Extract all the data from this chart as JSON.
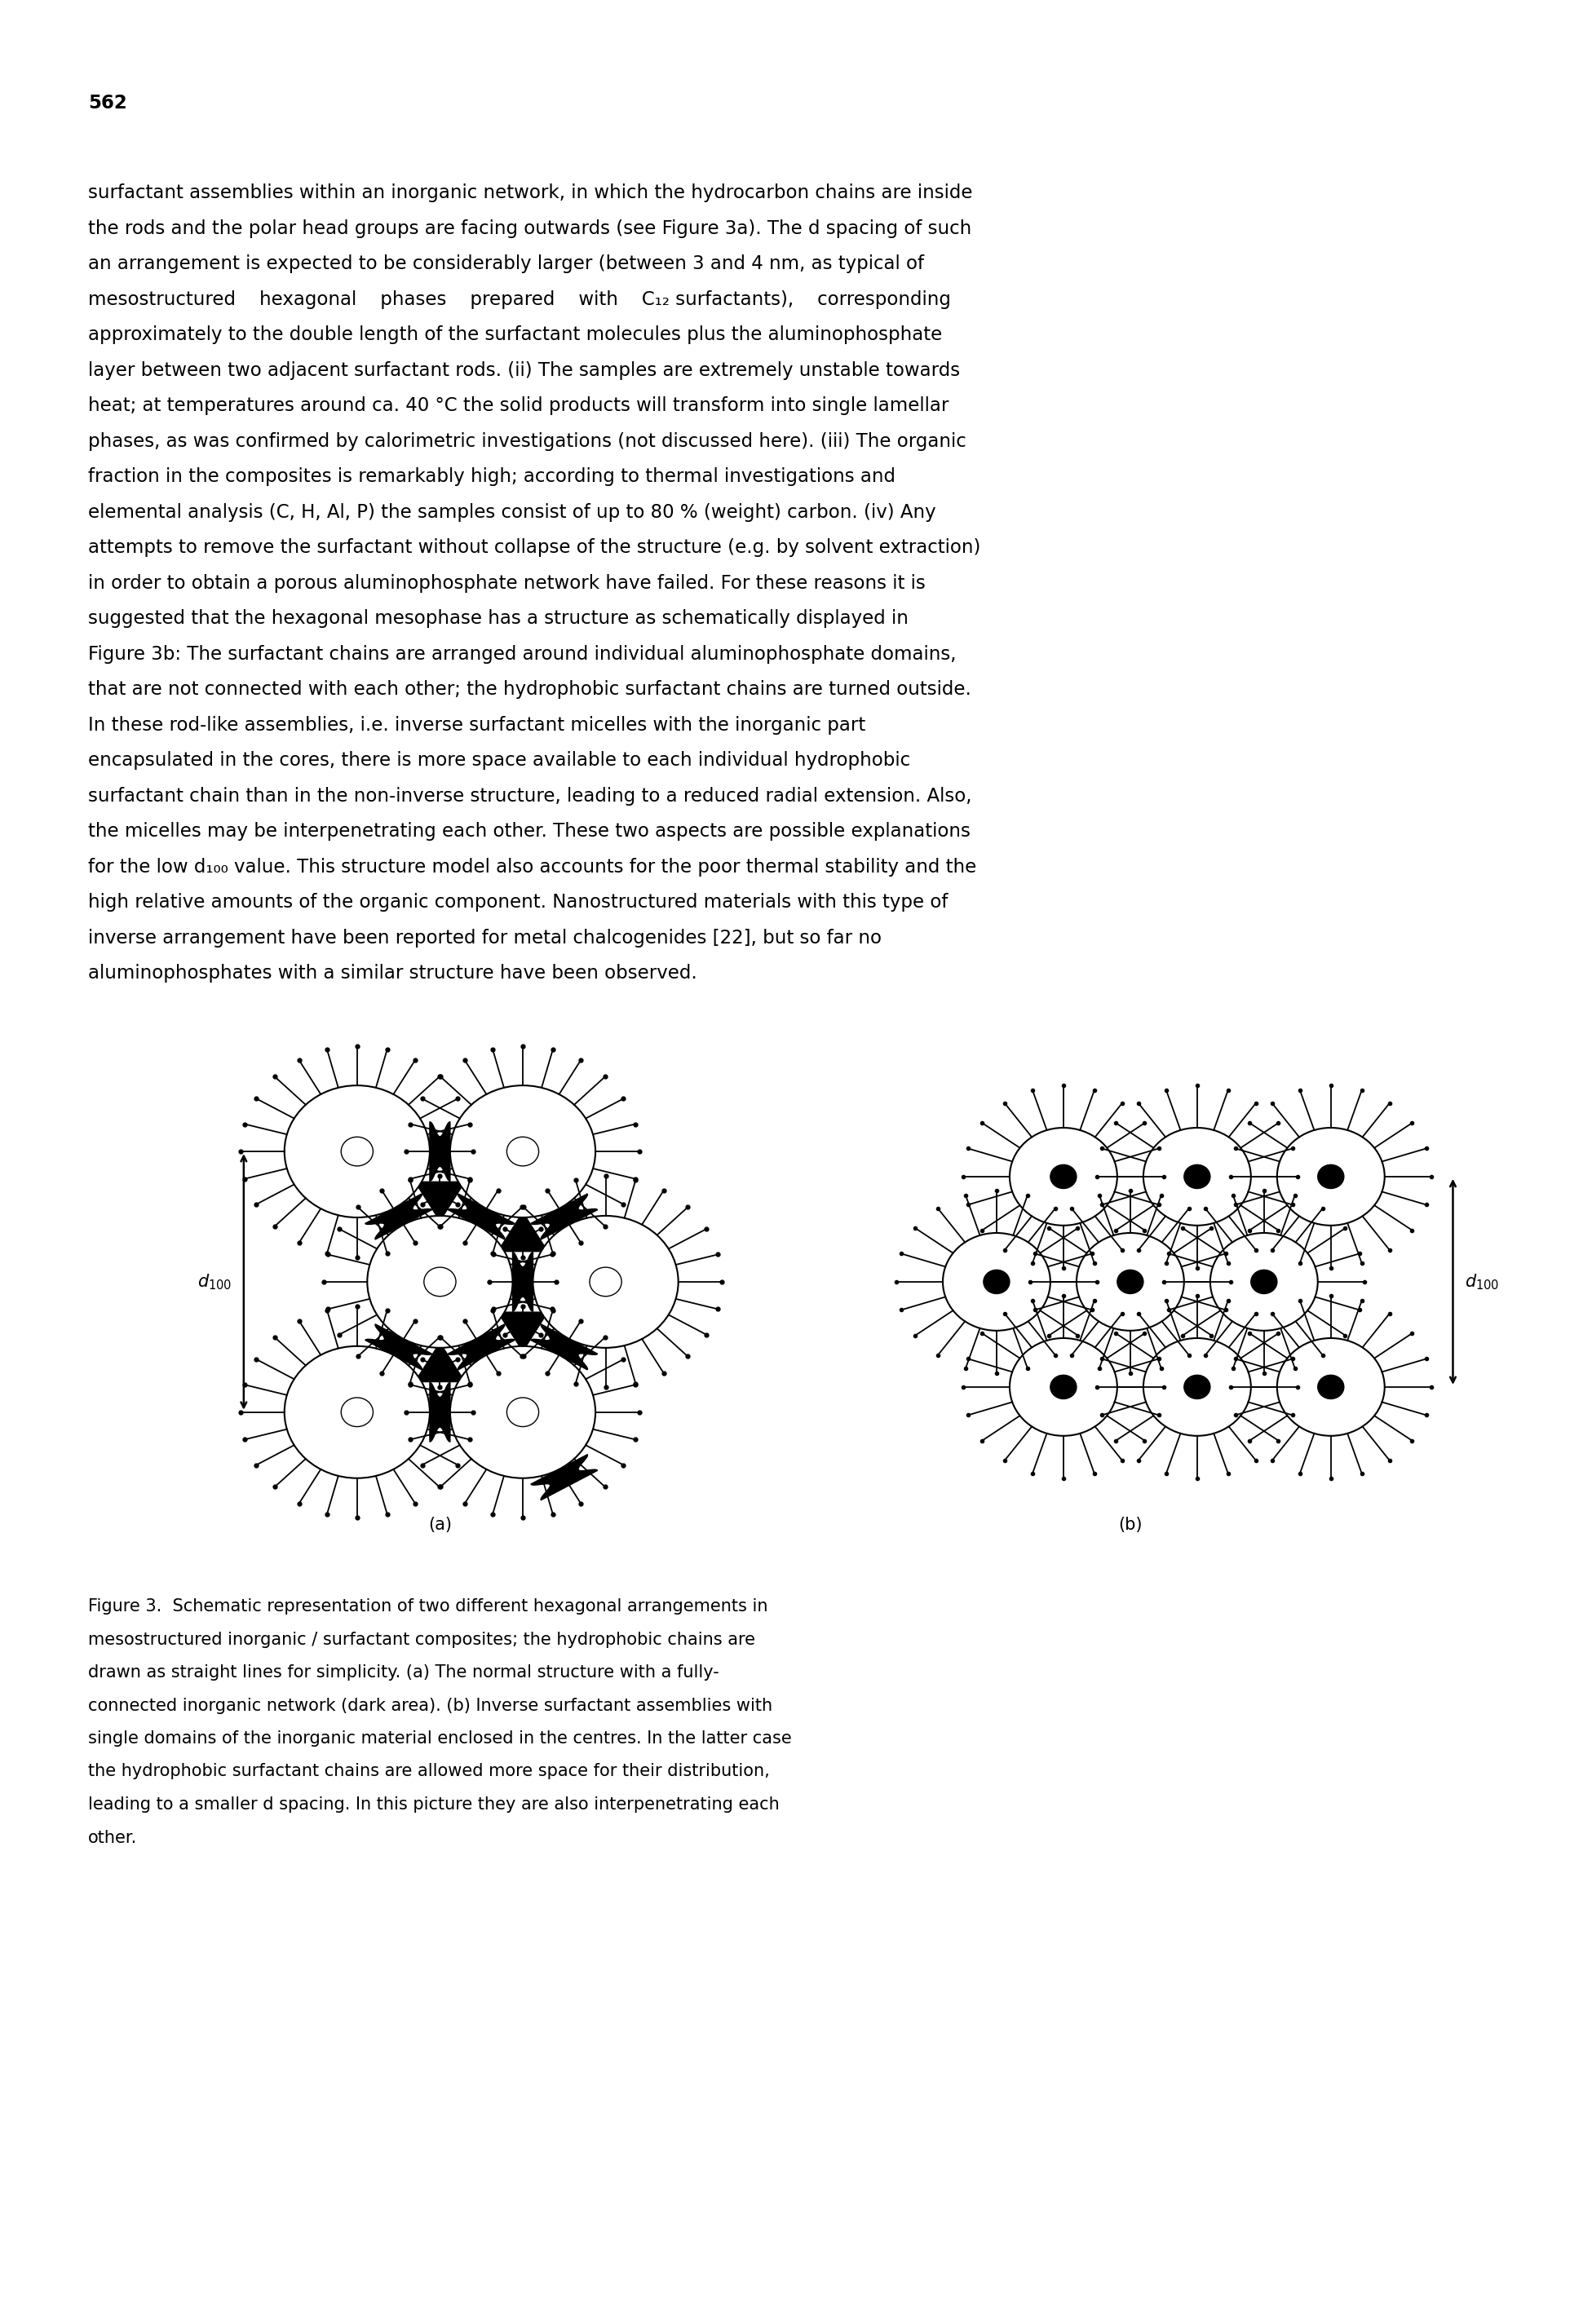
{
  "page_number": "562",
  "body_text_lines": [
    "surfactant assemblies within an inorganic network, in which the hydrocarbon chains are inside",
    "the rods and the polar head groups are facing outwards (see Figure 3a). The d spacing of such",
    "an arrangement is expected to be considerably larger (between 3 and 4 nm, as typical of",
    "mesostructured    hexagonal    phases    prepared    with    C₁₂ surfactants),    corresponding",
    "approximately to the double length of the surfactant molecules plus the aluminophosphate",
    "layer between two adjacent surfactant rods. (ii) The samples are extremely unstable towards",
    "heat; at temperatures around ca. 40 °C the solid products will transform into single lamellar",
    "phases, as was confirmed by calorimetric investigations (not discussed here). (iii) The organic",
    "fraction in the composites is remarkably high; according to thermal investigations and",
    "elemental analysis (C, H, Al, P) the samples consist of up to 80 % (weight) carbon. (iv) Any",
    "attempts to remove the surfactant without collapse of the structure (e.g. by solvent extraction)",
    "in order to obtain a porous aluminophosphate network have failed. For these reasons it is",
    "suggested that the hexagonal mesophase has a structure as schematically displayed in",
    "Figure 3b: The surfactant chains are arranged around individual aluminophosphate domains,",
    "that are not connected with each other; the hydrophobic surfactant chains are turned outside.",
    "In these rod-like assemblies, i.e. inverse surfactant micelles with the inorganic part",
    "encapsulated in the cores, there is more space available to each individual hydrophobic",
    "surfactant chain than in the non-inverse structure, leading to a reduced radial extension. Also,",
    "the micelles may be interpenetrating each other. These two aspects are possible explanations",
    "for the low d₁₀₀ value. This structure model also accounts for the poor thermal stability and the",
    "high relative amounts of the organic component. Nanostructured materials with this type of",
    "inverse arrangement have been reported for metal chalcogenides [22], but so far no",
    "aluminophosphates with a similar structure have been observed."
  ],
  "caption_text": "Figure 3.  Schematic representation of two different hexagonal arrangements in mesostructured inorganic / surfactant composites; the hydrophobic chains are drawn as straight lines for simplicity. (a) The normal structure with a fully-connected inorganic network (dark area). (b) Inverse surfactant assemblies with single domains of the inorganic material enclosed in the centres. In the latter case the hydrophobic surfactant chains are allowed more space for their distribution, leading to a smaller d spacing. In this picture they are also interpenetrating each other.",
  "figure_a_label": "(a)",
  "figure_b_label": "(b)",
  "d100_label": "d",
  "bg_color": "#ffffff",
  "text_color": "#000000",
  "body_font_size": 16.5,
  "caption_font_size": 15.0,
  "page_num_font_size": 16.5
}
